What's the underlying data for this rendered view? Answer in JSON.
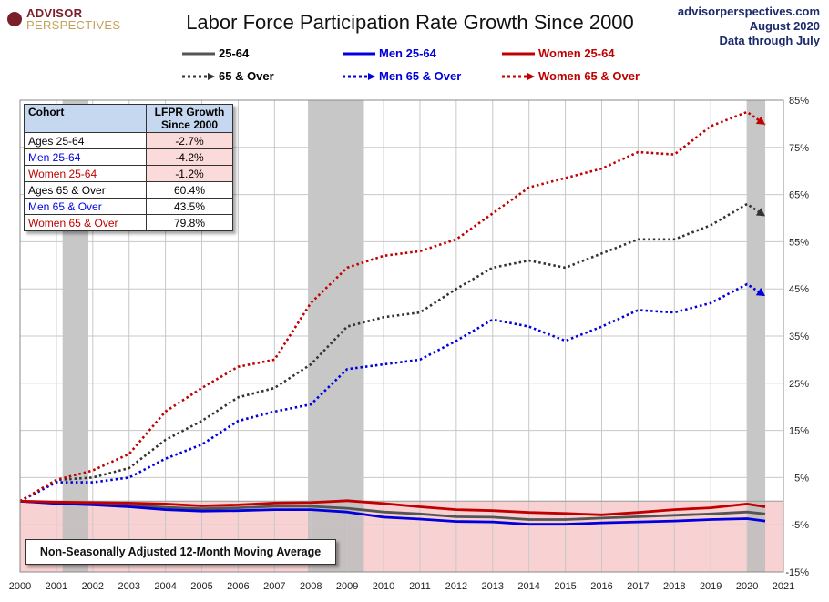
{
  "title": "Labor Force Participation Rate Growth Since 2000",
  "logo": {
    "line1": "ADVISOR",
    "line2": "PERSPECTIVES"
  },
  "source": {
    "site": "advisorperspectives.com",
    "date": "August 2020",
    "through": "Data through July"
  },
  "legend": [
    {
      "label": "25-64",
      "color": "#555555",
      "style": "solid"
    },
    {
      "label": "Men 25-64",
      "color": "#0000dd",
      "style": "solid"
    },
    {
      "label": "Women 25-64",
      "color": "#c00000",
      "style": "solid"
    },
    {
      "label": "65 & Over",
      "color": "#333333",
      "style": "dotted"
    },
    {
      "label": "Men 65 & Over",
      "color": "#0000dd",
      "style": "dotted"
    },
    {
      "label": "Women 65 & Over",
      "color": "#c00000",
      "style": "dotted"
    }
  ],
  "table": {
    "header": [
      "Cohort",
      "LFPR Growth Since 2000"
    ],
    "rows": [
      {
        "label": "Ages 25-64",
        "value": "-2.7%",
        "color": "#000000",
        "negative": true
      },
      {
        "label": "Men 25-64",
        "value": "-4.2%",
        "color": "#0000dd",
        "negative": true
      },
      {
        "label": "Women 25-64",
        "value": "-1.2%",
        "color": "#c00000",
        "negative": true
      },
      {
        "label": "Ages 65  & Over",
        "value": "60.4%",
        "color": "#000000",
        "negative": false
      },
      {
        "label": "Men 65  & Over",
        "value": "43.5%",
        "color": "#0000dd",
        "negative": false
      },
      {
        "label": "Women 65 & Over",
        "value": "79.8%",
        "color": "#c00000",
        "negative": false
      }
    ]
  },
  "note": "Non-Seasonally Adjusted 12-Month Moving Average",
  "colors": {
    "recession": "#bdbdbd",
    "negative_zone": "#f8d2d2",
    "grid": "#c8c8c8"
  },
  "chart_data": {
    "type": "line",
    "title": "Labor Force Participation Rate Growth Since 2000",
    "xlabel": "",
    "ylabel": "",
    "xlim": [
      2000,
      2021
    ],
    "ylim": [
      -15,
      85
    ],
    "x_ticks": [
      "2000",
      "2001",
      "2002",
      "2003",
      "2004",
      "2005",
      "2006",
      "2007",
      "2008",
      "2009",
      "2010",
      "2011",
      "2012",
      "2013",
      "2014",
      "2015",
      "2016",
      "2017",
      "2018",
      "2019",
      "2020",
      "2021"
    ],
    "y_ticks": [
      "85%",
      "75%",
      "65%",
      "55%",
      "45%",
      "35%",
      "25%",
      "15%",
      "5%",
      "-5%",
      "-15%"
    ],
    "y_tick_values": [
      85,
      75,
      65,
      55,
      45,
      35,
      25,
      15,
      5,
      -5,
      -15
    ],
    "recessions": [
      [
        2001.17,
        2001.88
      ],
      [
        2007.92,
        2009.46
      ],
      [
        2020.0,
        2020.5
      ]
    ],
    "negative_region": [
      -15,
      0
    ],
    "series": [
      {
        "name": "25-64",
        "color": "#555555",
        "style": "solid",
        "x": [
          2000,
          2001,
          2002,
          2003,
          2004,
          2005,
          2006,
          2007,
          2008,
          2009,
          2010,
          2011,
          2012,
          2013,
          2014,
          2015,
          2016,
          2017,
          2018,
          2019,
          2020,
          2020.5
        ],
        "y": [
          0,
          -0.4,
          -0.6,
          -0.9,
          -1.3,
          -1.6,
          -1.4,
          -1.1,
          -1.1,
          -1.5,
          -2.3,
          -2.7,
          -3.3,
          -3.4,
          -3.9,
          -3.9,
          -3.6,
          -3.3,
          -3.0,
          -2.7,
          -2.3,
          -2.7
        ]
      },
      {
        "name": "Men 25-64",
        "color": "#0000dd",
        "style": "solid",
        "x": [
          2000,
          2001,
          2002,
          2003,
          2004,
          2005,
          2006,
          2007,
          2008,
          2009,
          2010,
          2011,
          2012,
          2013,
          2014,
          2015,
          2016,
          2017,
          2018,
          2019,
          2020,
          2020.5
        ],
        "y": [
          0,
          -0.5,
          -0.8,
          -1.2,
          -1.8,
          -2.1,
          -2.0,
          -1.8,
          -1.8,
          -2.3,
          -3.4,
          -3.8,
          -4.3,
          -4.4,
          -4.9,
          -4.9,
          -4.6,
          -4.4,
          -4.2,
          -3.9,
          -3.7,
          -4.2
        ]
      },
      {
        "name": "Women 25-64",
        "color": "#c00000",
        "style": "solid",
        "x": [
          2000,
          2001,
          2002,
          2003,
          2004,
          2005,
          2006,
          2007,
          2008,
          2009,
          2010,
          2011,
          2012,
          2013,
          2014,
          2015,
          2016,
          2017,
          2018,
          2019,
          2020,
          2020.5
        ],
        "y": [
          0,
          -0.2,
          -0.3,
          -0.4,
          -0.6,
          -1.0,
          -0.8,
          -0.4,
          -0.3,
          0.1,
          -0.5,
          -1.2,
          -1.8,
          -2.0,
          -2.4,
          -2.6,
          -2.9,
          -2.4,
          -1.8,
          -1.4,
          -0.6,
          -1.2
        ]
      },
      {
        "name": "65 & Over",
        "color": "#333333",
        "style": "dotted",
        "x": [
          2000,
          2001,
          2002,
          2003,
          2004,
          2005,
          2006,
          2007,
          2008,
          2009,
          2010,
          2011,
          2012,
          2013,
          2014,
          2015,
          2016,
          2017,
          2018,
          2019,
          2020,
          2020.5
        ],
        "y": [
          0,
          4.5,
          5,
          7,
          13,
          17,
          22,
          24,
          29,
          37,
          39,
          40,
          45,
          49.5,
          51,
          49.5,
          52.5,
          55.5,
          55.5,
          58.5,
          63,
          60.4
        ]
      },
      {
        "name": "Men 65 & Over",
        "color": "#0000dd",
        "style": "dotted",
        "x": [
          2000,
          2001,
          2002,
          2003,
          2004,
          2005,
          2006,
          2007,
          2008,
          2009,
          2010,
          2011,
          2012,
          2013,
          2014,
          2015,
          2016,
          2017,
          2018,
          2019,
          2020,
          2020.5
        ],
        "y": [
          0,
          4,
          4,
          5,
          9,
          12,
          17,
          19,
          20.5,
          28,
          29,
          30,
          34,
          38.5,
          37,
          34,
          37,
          40.5,
          40,
          42,
          46,
          43.5
        ]
      },
      {
        "name": "Women 65 & Over",
        "color": "#c00000",
        "style": "dotted",
        "x": [
          2000,
          2001,
          2002,
          2003,
          2004,
          2005,
          2006,
          2007,
          2008,
          2009,
          2010,
          2011,
          2012,
          2013,
          2014,
          2015,
          2016,
          2017,
          2018,
          2019,
          2020,
          2020.5
        ],
        "y": [
          0,
          4.5,
          6.5,
          10,
          19,
          24,
          28.5,
          30,
          42,
          49.5,
          52,
          53,
          55.5,
          61,
          66.5,
          68.5,
          70.5,
          74,
          73.5,
          79.5,
          82.5,
          79.8
        ]
      }
    ]
  }
}
